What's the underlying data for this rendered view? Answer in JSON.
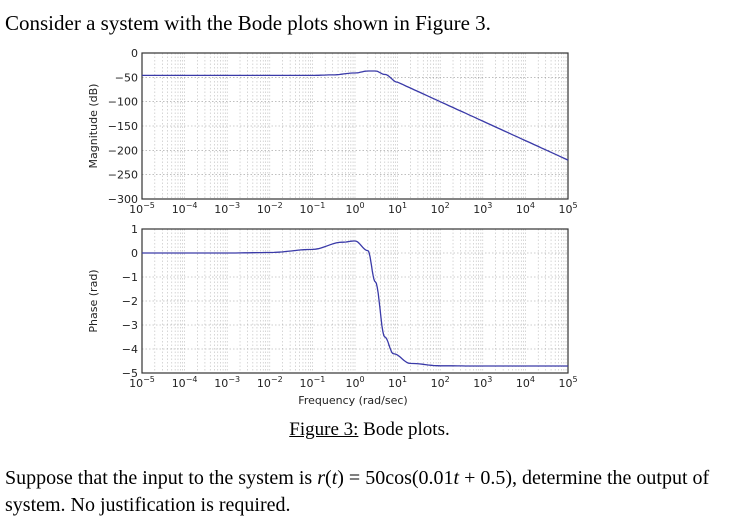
{
  "intro_text": "Consider a system with the Bode plots shown in Figure 3.",
  "caption": {
    "figure_label": "Figure 3:",
    "text": " Bode plots."
  },
  "question": {
    "before": "Suppose that the input to the system is ",
    "math": "r(t) = 50cos(0.01t + 0.5)",
    "after": ", determine the output of system.  No justification is required."
  },
  "line_color": "#3a3aa8",
  "chart_data": [
    {
      "type": "line",
      "title": "",
      "xlabel": "",
      "ylabel": "Magnitude (dB)",
      "xscale": "log",
      "xlim": [
        1e-05,
        100000.0
      ],
      "ylim": [
        -300,
        0
      ],
      "grid": true,
      "x_tick_labels": [
        "10^-5",
        "10^-4",
        "10^-3",
        "10^-2",
        "10^-1",
        "10^0",
        "10^1",
        "10^2",
        "10^3",
        "10^4",
        "10^5"
      ],
      "y_tick_labels": [
        "0",
        "-50",
        "-100",
        "-150",
        "-200",
        "-250",
        "-300"
      ],
      "series": [
        {
          "name": "magnitude",
          "x": [
            1e-05,
            0.001,
            0.1,
            0.3,
            1,
            2,
            3,
            5,
            10,
            100,
            1000,
            10000,
            100000
          ],
          "y": [
            -46,
            -46,
            -46,
            -45,
            -41,
            -37,
            -37,
            -44,
            -60,
            -100,
            -140,
            -180,
            -220
          ]
        }
      ]
    },
    {
      "type": "line",
      "title": "",
      "xlabel": "Frequency (rad/sec)",
      "ylabel": "Phase (rad)",
      "xscale": "log",
      "xlim": [
        1e-05,
        100000.0
      ],
      "ylim": [
        -5,
        1
      ],
      "grid": true,
      "x_tick_labels": [
        "10^-5",
        "10^-4",
        "10^-3",
        "10^-2",
        "10^-1",
        "10^0",
        "10^1",
        "10^2",
        "10^3",
        "10^4",
        "10^5"
      ],
      "y_tick_labels": [
        "1",
        "0",
        "-1",
        "-2",
        "-3",
        "-4",
        "-5"
      ],
      "series": [
        {
          "name": "phase",
          "x": [
            1e-05,
            0.001,
            0.01,
            0.1,
            0.5,
            1,
            2,
            3,
            5,
            8,
            20,
            100,
            1000,
            100000
          ],
          "y": [
            0,
            0,
            0.02,
            0.15,
            0.45,
            0.5,
            0.1,
            -1.2,
            -3.5,
            -4.2,
            -4.6,
            -4.7,
            -4.71,
            -4.71
          ]
        }
      ]
    }
  ]
}
